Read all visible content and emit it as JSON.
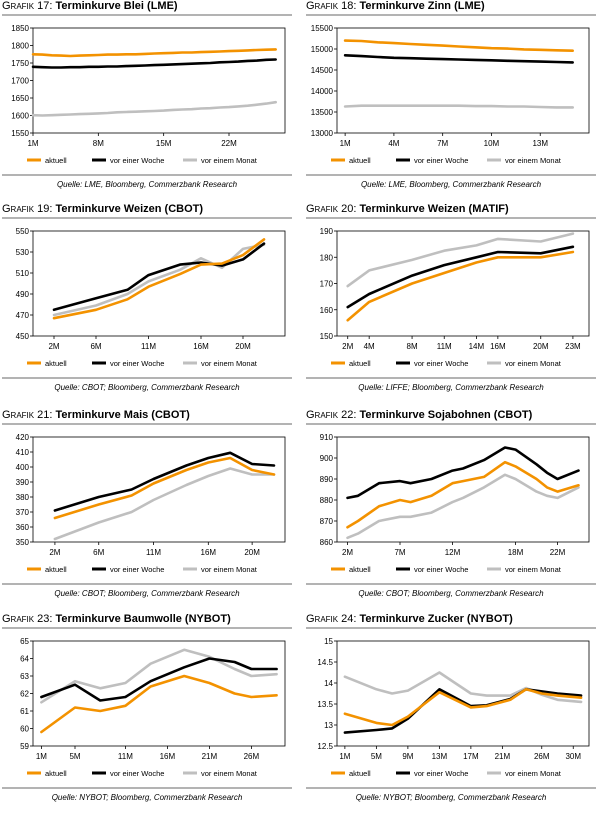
{
  "legend_labels": [
    "aktuell",
    "vor einer Woche",
    "vor einem Monat"
  ],
  "series_colors": [
    "#f39200",
    "#000000",
    "#bfbfbf"
  ],
  "charts": [
    {
      "figure_label": "Grafik 17:",
      "title": "Terminkurve Blei (LME)",
      "source": "Quelle: LME, Bloomberg, Commerzbank Research",
      "chart_data": {
        "type": "line",
        "x": [
          1,
          2,
          3,
          4,
          5,
          6,
          7,
          8,
          9,
          10,
          11,
          12,
          13,
          14,
          15,
          16,
          17,
          18,
          19,
          20,
          21,
          22,
          23,
          24,
          25,
          26,
          27
        ],
        "xlim": [
          1,
          28
        ],
        "xticks": [
          1,
          8,
          15,
          22
        ],
        "xtick_labels": [
          "1M",
          "8M",
          "15M",
          "22M"
        ],
        "ylim": [
          1550,
          1850
        ],
        "yticks": [
          1550,
          1600,
          1650,
          1700,
          1750,
          1800,
          1850
        ],
        "series": [
          {
            "name": "aktuell",
            "values": [
              1775,
              1774,
              1772,
              1771,
              1770,
              1771,
              1772,
              1773,
              1774,
              1774,
              1775,
              1775,
              1776,
              1777,
              1778,
              1779,
              1780,
              1780,
              1781,
              1782,
              1783,
              1784,
              1785,
              1786,
              1787,
              1788,
              1789
            ]
          },
          {
            "name": "vor einer Woche",
            "values": [
              1739,
              1738,
              1737,
              1737,
              1738,
              1738,
              1739,
              1739,
              1740,
              1740,
              1741,
              1742,
              1743,
              1744,
              1745,
              1746,
              1747,
              1748,
              1749,
              1750,
              1752,
              1753,
              1754,
              1756,
              1757,
              1759,
              1760
            ]
          },
          {
            "name": "vor einem Monat",
            "values": [
              1601,
              1600,
              1601,
              1602,
              1603,
              1604,
              1605,
              1606,
              1607,
              1609,
              1610,
              1611,
              1612,
              1613,
              1614,
              1616,
              1617,
              1618,
              1620,
              1621,
              1623,
              1624,
              1626,
              1628,
              1631,
              1634,
              1638
            ]
          }
        ]
      }
    },
    {
      "figure_label": "Grafik 18:",
      "title": "Terminkurve Zinn (LME)",
      "source": "Quelle: LME, Bloomberg, Commerzbank Research",
      "chart_data": {
        "type": "line",
        "x": [
          1,
          2,
          3,
          4,
          5,
          6,
          7,
          8,
          9,
          10,
          11,
          12,
          13,
          14,
          15
        ],
        "xlim": [
          0.5,
          16
        ],
        "xticks": [
          1,
          4,
          7,
          10,
          13
        ],
        "xtick_labels": [
          "1M",
          "4M",
          "7M",
          "10M",
          "13M"
        ],
        "ylim": [
          13000,
          15500
        ],
        "yticks": [
          13000,
          13500,
          14000,
          14500,
          15000,
          15500
        ],
        "series": [
          {
            "name": "aktuell",
            "values": [
              15200,
              15190,
              15160,
              15140,
              15120,
              15100,
              15080,
              15060,
              15040,
              15020,
              15010,
              14990,
              14980,
              14970,
              14960
            ]
          },
          {
            "name": "vor einer Woche",
            "values": [
              14850,
              14830,
              14810,
              14790,
              14780,
              14770,
              14760,
              14750,
              14740,
              14730,
              14720,
              14710,
              14700,
              14690,
              14680
            ]
          },
          {
            "name": "vor einem Monat",
            "values": [
              13630,
              13650,
              13650,
              13650,
              13650,
              13650,
              13650,
              13650,
              13640,
              13640,
              13630,
              13630,
              13620,
              13610,
              13610
            ]
          }
        ]
      }
    },
    {
      "figure_label": "Grafik 19:",
      "title": "Terminkurve Weizen (CBOT)",
      "source": "Quelle: CBOT; Bloomberg, Commerzbank Research",
      "chart_data": {
        "type": "line",
        "x": [
          2,
          6,
          9,
          11,
          14,
          16,
          18,
          20,
          22
        ],
        "xlim": [
          0,
          24
        ],
        "xticks": [
          2,
          6,
          11,
          16,
          20
        ],
        "xtick_labels": [
          "2M",
          "6M",
          "11M",
          "16M",
          "20M"
        ],
        "ylim": [
          450,
          550
        ],
        "yticks": [
          450,
          470,
          490,
          510,
          530,
          550
        ],
        "series": [
          {
            "name": "aktuell",
            "values": [
              467,
              475,
              485,
              497,
              509,
              518,
              519,
              527,
              542
            ]
          },
          {
            "name": "vor einer Woche",
            "values": [
              475,
              486,
              494,
              508,
              518,
              520,
              517,
              523,
              538
            ]
          },
          {
            "name": "vor einem Monat",
            "values": [
              470,
              479,
              490,
              502,
              513,
              524,
              515,
              533,
              537
            ]
          }
        ]
      }
    },
    {
      "figure_label": "Grafik 20:",
      "title": "Terminkurve Weizen (MATIF)",
      "source": "Quelle: LIFFE; Bloomberg, Commerzbank Research",
      "chart_data": {
        "type": "line",
        "x": [
          2,
          4,
          8,
          11,
          14,
          16,
          20,
          23
        ],
        "xlim": [
          1,
          24.5
        ],
        "xticks": [
          2,
          4,
          8,
          11,
          14,
          16,
          20,
          23
        ],
        "xtick_labels": [
          "2M",
          "4M",
          "8M",
          "11M",
          "14M",
          "16M",
          "20M",
          "23M"
        ],
        "ylim": [
          150,
          190
        ],
        "yticks": [
          150,
          160,
          170,
          180,
          190
        ],
        "series": [
          {
            "name": "aktuell",
            "values": [
              156,
              163,
              170,
              174,
              178,
              180,
              180,
              182
            ]
          },
          {
            "name": "vor einer Woche",
            "values": [
              161,
              166,
              173,
              177,
              180,
              182,
              181.5,
              184
            ]
          },
          {
            "name": "vor einem Monat",
            "values": [
              169,
              175,
              179,
              182.5,
              184.5,
              187,
              186,
              189
            ]
          }
        ]
      }
    },
    {
      "figure_label": "Grafik 21:",
      "title": "Terminkurve Mais (CBOT)",
      "source": "Quelle: CBOT; Bloomberg, Commerzbank Research",
      "chart_data": {
        "type": "line",
        "x": [
          2,
          6,
          9,
          11,
          14,
          16,
          18,
          20,
          22
        ],
        "xlim": [
          0,
          23
        ],
        "xticks": [
          2,
          6,
          11,
          16,
          20
        ],
        "xtick_labels": [
          "2M",
          "6M",
          "11M",
          "16M",
          "20M"
        ],
        "ylim": [
          350,
          420
        ],
        "yticks": [
          350,
          360,
          370,
          380,
          390,
          400,
          410,
          420
        ],
        "series": [
          {
            "name": "aktuell",
            "values": [
              366,
              375,
              381,
              389,
              398,
              403,
              406,
              398,
              395
            ]
          },
          {
            "name": "vor einer Woche",
            "values": [
              371,
              380,
              385,
              392,
              401,
              406,
              409.5,
              402,
              401
            ]
          },
          {
            "name": "vor einem Monat",
            "values": [
              352,
              363,
              370,
              378,
              388,
              394,
              399,
              395,
              395
            ]
          }
        ]
      }
    },
    {
      "figure_label": "Grafik 22:",
      "title": "Terminkurve Sojabohnen (CBOT)",
      "source": "Quelle: CBOT; Bloomberg, Commerzbank Research",
      "chart_data": {
        "type": "line",
        "x": [
          2,
          3,
          5,
          7,
          8,
          10,
          12,
          13,
          15,
          17,
          18,
          20,
          21,
          22,
          24
        ],
        "xlim": [
          1,
          25
        ],
        "xticks": [
          2,
          7,
          12,
          18,
          22
        ],
        "xtick_labels": [
          "2M",
          "7M",
          "12M",
          "18M",
          "22M"
        ],
        "ylim": [
          860,
          910
        ],
        "yticks": [
          860,
          870,
          880,
          890,
          900,
          910
        ],
        "series": [
          {
            "name": "aktuell",
            "values": [
              867,
              870,
              877,
              880,
              879,
              882,
              888,
              889,
              891,
              898,
              896,
              890,
              886,
              884,
              887
            ]
          },
          {
            "name": "vor einer Woche",
            "values": [
              881,
              882,
              888,
              889,
              888,
              890,
              894,
              895,
              899,
              905,
              904,
              897,
              893,
              890,
              894
            ]
          },
          {
            "name": "vor einem Monat",
            "values": [
              862,
              864,
              870,
              872,
              872,
              874,
              879,
              881,
              886,
              892,
              890,
              884,
              882,
              881,
              886
            ]
          }
        ]
      }
    },
    {
      "figure_label": "Grafik 23:",
      "title": "Terminkurve Baumwolle (NYBOT)",
      "source": "Quelle: NYBOT; Bloomberg, Commerzbank Research",
      "chart_data": {
        "type": "line",
        "x": [
          1,
          5,
          8,
          11,
          14,
          18,
          21,
          24,
          26,
          29
        ],
        "xlim": [
          0,
          30
        ],
        "xticks": [
          1,
          5,
          11,
          16,
          21,
          26
        ],
        "xtick_labels": [
          "1M",
          "5M",
          "11M",
          "16M",
          "21M",
          "26M"
        ],
        "ylim": [
          59,
          65
        ],
        "yticks": [
          59,
          60,
          61,
          62,
          63,
          64,
          65
        ],
        "series": [
          {
            "name": "aktuell",
            "values": [
              59.8,
              61.2,
              61.0,
              61.3,
              62.4,
              63.0,
              62.6,
              62.0,
              61.8,
              61.9
            ]
          },
          {
            "name": "vor einer Woche",
            "values": [
              61.8,
              62.5,
              61.6,
              61.8,
              62.7,
              63.5,
              64.0,
              63.8,
              63.4,
              63.4
            ]
          },
          {
            "name": "vor einem Monat",
            "values": [
              61.5,
              62.7,
              62.3,
              62.6,
              63.7,
              64.5,
              64.1,
              63.4,
              63.0,
              63.1
            ]
          }
        ]
      }
    },
    {
      "figure_label": "Grafik 24:",
      "title": "Terminkurve Zucker (NYBOT)",
      "source": "Quelle: NYBOT; Bloomberg, Commerzbank Research",
      "chart_data": {
        "type": "line",
        "x": [
          1,
          5,
          7,
          9,
          13,
          15,
          17,
          19,
          22,
          24,
          26,
          28,
          31
        ],
        "xlim": [
          0,
          32
        ],
        "xticks": [
          1,
          5,
          9,
          13,
          17,
          21,
          26,
          30
        ],
        "xtick_labels": [
          "1M",
          "5M",
          "9M",
          "13M",
          "17M",
          "21M",
          "26M",
          "30M"
        ],
        "ylim": [
          12.5,
          15.0
        ],
        "yticks": [
          12.5,
          13.0,
          13.5,
          14.0,
          14.5,
          15.0
        ],
        "series": [
          {
            "name": "aktuell",
            "values": [
              13.27,
              13.05,
              13.0,
              13.2,
              13.78,
              13.6,
              13.42,
              13.45,
              13.6,
              13.85,
              13.75,
              13.7,
              13.65
            ]
          },
          {
            "name": "vor einer Woche",
            "values": [
              12.82,
              12.88,
              12.92,
              13.15,
              13.85,
              13.65,
              13.45,
              13.47,
              13.62,
              13.85,
              13.8,
              13.75,
              13.7
            ]
          },
          {
            "name": "vor einem Monat",
            "values": [
              14.15,
              13.85,
              13.75,
              13.82,
              14.25,
              14.0,
              13.75,
              13.7,
              13.7,
              13.88,
              13.72,
              13.6,
              13.55
            ]
          }
        ]
      }
    }
  ]
}
